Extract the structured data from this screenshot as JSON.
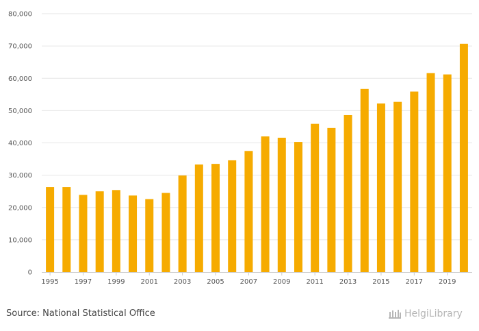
{
  "chart_data": {
    "type": "bar",
    "title": "",
    "xlabel": "",
    "ylabel": "",
    "categories": [
      "1995",
      "1996",
      "1997",
      "1998",
      "1999",
      "2000",
      "2001",
      "2002",
      "2003",
      "2004",
      "2005",
      "2006",
      "2007",
      "2008",
      "2009",
      "2010",
      "2011",
      "2012",
      "2013",
      "2014",
      "2015",
      "2016",
      "2017",
      "2018",
      "2019",
      "2020"
    ],
    "x_tick_labels": [
      "1995",
      "1997",
      "1999",
      "2001",
      "2003",
      "2005",
      "2007",
      "2009",
      "2011",
      "2013",
      "2015",
      "2017",
      "2019"
    ],
    "values": [
      26300,
      26300,
      23900,
      25000,
      25400,
      23700,
      22600,
      24500,
      29900,
      33300,
      33500,
      34600,
      37500,
      42000,
      41600,
      40300,
      45900,
      44600,
      48600,
      56700,
      52200,
      52700,
      55900,
      61600,
      61200,
      70700
    ],
    "ylim": [
      0,
      80000
    ],
    "y_ticks": [
      "0",
      "10,000",
      "20,000",
      "30,000",
      "40,000",
      "50,000",
      "60,000",
      "70,000",
      "80,000"
    ],
    "grid": true,
    "bar_color": "#f6ab00"
  },
  "footer": {
    "source": "Source: National Statistical Office",
    "logo_text": "HelgiLibrary"
  }
}
